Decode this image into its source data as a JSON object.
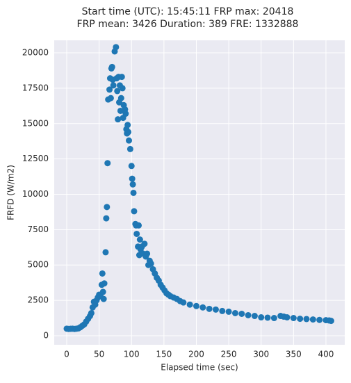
{
  "chart_data": {
    "type": "scatter",
    "title": "Start time (UTC): 15:45:11 FRP max: 20418",
    "subtitle": "FRP mean: 3426 Duration: 389 FRE: 1332888",
    "xlabel": "Elapsed time (sec)",
    "ylabel": "FRFD (W/m2)",
    "color": "#1f77b4",
    "grid": true,
    "xlim": [
      -19.3,
      429
    ],
    "ylim": [
      -639,
      20885
    ],
    "xticks": [
      0,
      50,
      100,
      150,
      200,
      250,
      300,
      350,
      400
    ],
    "yticks": [
      0,
      2500,
      5000,
      7500,
      10000,
      12500,
      15000,
      17500,
      20000
    ],
    "x": [
      0,
      3,
      6,
      9,
      12,
      15,
      18,
      21,
      24,
      27,
      30,
      33,
      36,
      38,
      40,
      42,
      44,
      46,
      48,
      50,
      52,
      54,
      55,
      56,
      57,
      58,
      60,
      61,
      62,
      63,
      64,
      66,
      67,
      68,
      69,
      70,
      71,
      72,
      74,
      76,
      77,
      78,
      79,
      80,
      81,
      82,
      83,
      84,
      85,
      86,
      87,
      88,
      90,
      91,
      92,
      93,
      94,
      95,
      96,
      98,
      100,
      101,
      102,
      103,
      104,
      106,
      107,
      108,
      110,
      111,
      112,
      113,
      114,
      116,
      118,
      120,
      122,
      124,
      126,
      128,
      130,
      133,
      136,
      139,
      142,
      145,
      148,
      151,
      154,
      157,
      160,
      165,
      170,
      175,
      180,
      190,
      200,
      210,
      220,
      230,
      240,
      250,
      260,
      270,
      280,
      290,
      300,
      310,
      320,
      330,
      335,
      340,
      350,
      360,
      370,
      380,
      390,
      400,
      405,
      408
    ],
    "values": [
      500,
      480,
      490,
      500,
      480,
      500,
      520,
      600,
      700,
      800,
      1000,
      1200,
      1400,
      1600,
      2000,
      2400,
      2200,
      2500,
      2700,
      2900,
      2800,
      3600,
      4400,
      3100,
      2600,
      3700,
      5900,
      8300,
      9100,
      12200,
      16700,
      17400,
      18200,
      16800,
      18900,
      19000,
      18100,
      17700,
      20100,
      20400,
      18200,
      17300,
      15300,
      18300,
      16500,
      17700,
      15900,
      16800,
      18300,
      17500,
      15400,
      16300,
      16000,
      15700,
      14600,
      14300,
      14900,
      14400,
      13800,
      13200,
      12000,
      11100,
      10700,
      10100,
      8800,
      7900,
      7800,
      7200,
      6300,
      7800,
      5700,
      6800,
      6100,
      6300,
      5800,
      6500,
      5600,
      5800,
      5000,
      5300,
      5100,
      4700,
      4400,
      4100,
      3900,
      3600,
      3400,
      3200,
      3000,
      2900,
      2800,
      2700,
      2600,
      2450,
      2350,
      2200,
      2100,
      2000,
      1900,
      1850,
      1750,
      1700,
      1600,
      1550,
      1450,
      1400,
      1300,
      1280,
      1250,
      1400,
      1350,
      1300,
      1250,
      1200,
      1180,
      1150,
      1120,
      1100,
      1080,
      1050
    ]
  }
}
